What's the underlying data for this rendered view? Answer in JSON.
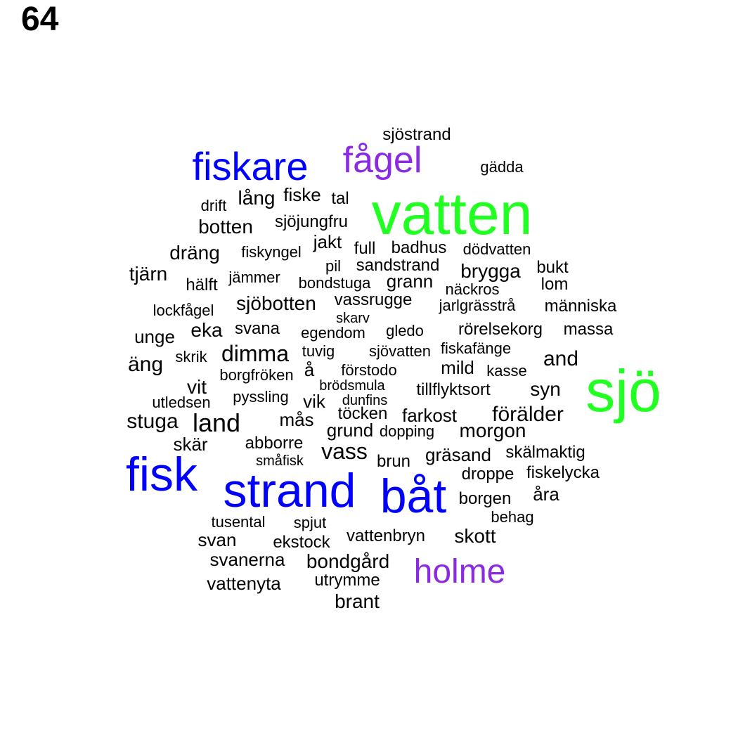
{
  "panel_label": "64",
  "palette": {
    "large": "#22ff22",
    "medium": "#0000ff",
    "purple": "#8a2be2",
    "small": "#000000"
  },
  "words": [
    {
      "text": "vatten",
      "size_class": "large"
    },
    {
      "text": "sjö",
      "size_class": "large"
    },
    {
      "text": "fisk",
      "size_class": "medium"
    },
    {
      "text": "strand",
      "size_class": "medium"
    },
    {
      "text": "båt",
      "size_class": "medium"
    },
    {
      "text": "fiskare",
      "size_class": "medium"
    },
    {
      "text": "fågel",
      "size_class": "purple"
    },
    {
      "text": "holme",
      "size_class": "purple"
    },
    {
      "text": "sjöstrand",
      "size_class": "small"
    },
    {
      "text": "gädda",
      "size_class": "small"
    },
    {
      "text": "drift",
      "size_class": "small"
    },
    {
      "text": "lång",
      "size_class": "small"
    },
    {
      "text": "fiske",
      "size_class": "small"
    },
    {
      "text": "tal",
      "size_class": "small"
    },
    {
      "text": "botten",
      "size_class": "small"
    },
    {
      "text": "sjöjungfru",
      "size_class": "small"
    },
    {
      "text": "jakt",
      "size_class": "small"
    },
    {
      "text": "dräng",
      "size_class": "small"
    },
    {
      "text": "fiskyngel",
      "size_class": "small"
    },
    {
      "text": "full",
      "size_class": "small"
    },
    {
      "text": "badhus",
      "size_class": "small"
    },
    {
      "text": "dödvatten",
      "size_class": "small"
    },
    {
      "text": "tjärn",
      "size_class": "small"
    },
    {
      "text": "pil",
      "size_class": "small"
    },
    {
      "text": "sandstrand",
      "size_class": "small"
    },
    {
      "text": "brygga",
      "size_class": "small"
    },
    {
      "text": "bukt",
      "size_class": "small"
    },
    {
      "text": "hälft",
      "size_class": "small"
    },
    {
      "text": "jämmer",
      "size_class": "small"
    },
    {
      "text": "bondstuga",
      "size_class": "small"
    },
    {
      "text": "grann",
      "size_class": "small"
    },
    {
      "text": "lom",
      "size_class": "small"
    },
    {
      "text": "näckros",
      "size_class": "small"
    },
    {
      "text": "sjöbotten",
      "size_class": "small"
    },
    {
      "text": "vassrugge",
      "size_class": "small"
    },
    {
      "text": "lockfågel",
      "size_class": "small"
    },
    {
      "text": "jarlgrässtrå",
      "size_class": "small"
    },
    {
      "text": "människa",
      "size_class": "small"
    },
    {
      "text": "skarv",
      "size_class": "small"
    },
    {
      "text": "unge",
      "size_class": "small"
    },
    {
      "text": "eka",
      "size_class": "small"
    },
    {
      "text": "svana",
      "size_class": "small"
    },
    {
      "text": "egendom",
      "size_class": "small"
    },
    {
      "text": "gledo",
      "size_class": "small"
    },
    {
      "text": "rörelsekorg",
      "size_class": "small"
    },
    {
      "text": "massa",
      "size_class": "small"
    },
    {
      "text": "tuvig",
      "size_class": "small"
    },
    {
      "text": "fiskafänge",
      "size_class": "small"
    },
    {
      "text": "skrik",
      "size_class": "small"
    },
    {
      "text": "dimma",
      "size_class": "small"
    },
    {
      "text": "sjövatten",
      "size_class": "small"
    },
    {
      "text": "äng",
      "size_class": "small"
    },
    {
      "text": "and",
      "size_class": "small"
    },
    {
      "text": "borgfröken",
      "size_class": "small"
    },
    {
      "text": "å",
      "size_class": "small"
    },
    {
      "text": "förstodo",
      "size_class": "small"
    },
    {
      "text": "mild",
      "size_class": "small"
    },
    {
      "text": "kasse",
      "size_class": "small"
    },
    {
      "text": "vit",
      "size_class": "small"
    },
    {
      "text": "brödsmula",
      "size_class": "small"
    },
    {
      "text": "tillflyktsort",
      "size_class": "small"
    },
    {
      "text": "syn",
      "size_class": "small"
    },
    {
      "text": "pyssling",
      "size_class": "small"
    },
    {
      "text": "utledsen",
      "size_class": "small"
    },
    {
      "text": "vik",
      "size_class": "small"
    },
    {
      "text": "dunfins",
      "size_class": "small"
    },
    {
      "text": "töcken",
      "size_class": "small"
    },
    {
      "text": "farkost",
      "size_class": "small"
    },
    {
      "text": "förälder",
      "size_class": "small"
    },
    {
      "text": "stuga",
      "size_class": "small"
    },
    {
      "text": "land",
      "size_class": "small"
    },
    {
      "text": "mås",
      "size_class": "small"
    },
    {
      "text": "grund",
      "size_class": "small"
    },
    {
      "text": "dopping",
      "size_class": "small"
    },
    {
      "text": "morgon",
      "size_class": "small"
    },
    {
      "text": "skär",
      "size_class": "small"
    },
    {
      "text": "abborre",
      "size_class": "small"
    },
    {
      "text": "vass",
      "size_class": "small"
    },
    {
      "text": "gräsand",
      "size_class": "small"
    },
    {
      "text": "skälmaktig",
      "size_class": "small"
    },
    {
      "text": "småfisk",
      "size_class": "small"
    },
    {
      "text": "brun",
      "size_class": "small"
    },
    {
      "text": "droppe",
      "size_class": "small"
    },
    {
      "text": "fiskelycka",
      "size_class": "small"
    },
    {
      "text": "åra",
      "size_class": "small"
    },
    {
      "text": "borgen",
      "size_class": "small"
    },
    {
      "text": "behag",
      "size_class": "small"
    },
    {
      "text": "tusental",
      "size_class": "small"
    },
    {
      "text": "spjut",
      "size_class": "small"
    },
    {
      "text": "svan",
      "size_class": "small"
    },
    {
      "text": "ekstock",
      "size_class": "small"
    },
    {
      "text": "vattenbryn",
      "size_class": "small"
    },
    {
      "text": "skott",
      "size_class": "small"
    },
    {
      "text": "svanerna",
      "size_class": "small"
    },
    {
      "text": "bondgård",
      "size_class": "small"
    },
    {
      "text": "vattenyta",
      "size_class": "small"
    },
    {
      "text": "utrymme",
      "size_class": "small"
    },
    {
      "text": "brant",
      "size_class": "small"
    }
  ]
}
